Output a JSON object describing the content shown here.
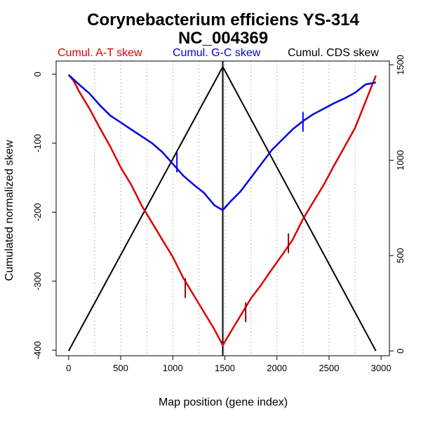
{
  "chart_data": {
    "type": "line",
    "title": "Corynebacterium efficiens YS-314",
    "subtitle": "NC_004369",
    "xlabel": "Map position (gene index)",
    "ylabel": "Cumulated normalized skew",
    "xlim": [
      -120,
      3080
    ],
    "ylim": [
      -408,
      19
    ],
    "y2lim": [
      -25,
      1520
    ],
    "x_ticks": [
      0,
      500,
      1000,
      1500,
      2000,
      2500,
      3000
    ],
    "y_ticks": [
      0,
      -100,
      -200,
      -300,
      -400
    ],
    "y2_ticks": [
      0,
      500,
      1000,
      1500
    ],
    "grid_x": [
      250,
      500,
      750,
      1000,
      1250,
      1500,
      1750,
      2000,
      2250,
      2500,
      2750
    ],
    "legend": [
      "Cumul. A-T skew",
      "Cumul. G-C skew",
      "Cumul. CDS skew"
    ],
    "legend_position": "top",
    "colors": {
      "at": "#dd0000",
      "gc": "#0000dd",
      "cds": "#000000",
      "at_marker": "#990000",
      "gc_marker": "#0000ff",
      "grid": "#bbbbbb"
    },
    "vline_x": 1480,
    "series": [
      {
        "name": "Cumul. A-T skew",
        "axis": "left",
        "x": [
          0,
          50,
          100,
          200,
          300,
          400,
          500,
          600,
          700,
          800,
          900,
          1000,
          1100,
          1200,
          1300,
          1400,
          1480,
          1550,
          1650,
          1750,
          1850,
          1950,
          2050,
          2150,
          2250,
          2350,
          2450,
          2550,
          2650,
          2750,
          2850,
          2950
        ],
        "values": [
          -1,
          -10,
          -25,
          -50,
          -78,
          -105,
          -135,
          -160,
          -190,
          -215,
          -240,
          -265,
          -295,
          -320,
          -345,
          -370,
          -393,
          -375,
          -350,
          -325,
          -305,
          -283,
          -262,
          -240,
          -210,
          -185,
          -160,
          -132,
          -105,
          -78,
          -40,
          -2
        ]
      },
      {
        "name": "Cumul. G-C skew",
        "axis": "left",
        "x": [
          0,
          50,
          100,
          200,
          300,
          400,
          500,
          600,
          700,
          800,
          900,
          1000,
          1100,
          1200,
          1300,
          1400,
          1480,
          1550,
          1650,
          1750,
          1850,
          1950,
          2050,
          2150,
          2250,
          2350,
          2450,
          2550,
          2650,
          2750,
          2850,
          2950
        ],
        "values": [
          -1,
          -8,
          -15,
          -28,
          -45,
          -60,
          -70,
          -80,
          -90,
          -100,
          -113,
          -130,
          -147,
          -160,
          -172,
          -190,
          -197,
          -185,
          -170,
          -150,
          -130,
          -110,
          -95,
          -80,
          -68,
          -58,
          -50,
          -42,
          -35,
          -27,
          -15,
          -12
        ]
      },
      {
        "name": "Cumul. CDS skew",
        "axis": "right",
        "x": [
          0,
          1480,
          2950
        ],
        "values": [
          0,
          1490,
          0
        ]
      }
    ],
    "markers": [
      {
        "series": "Cumul. G-C skew",
        "x": 1040,
        "y": -128
      },
      {
        "series": "Cumul. G-C skew",
        "x": 2250,
        "y": -69
      },
      {
        "series": "Cumul. A-T skew",
        "x": 1120,
        "y": -310
      },
      {
        "series": "Cumul. A-T skew",
        "x": 1700,
        "y": -345
      },
      {
        "series": "Cumul. A-T skew",
        "x": 2110,
        "y": -245
      }
    ]
  }
}
